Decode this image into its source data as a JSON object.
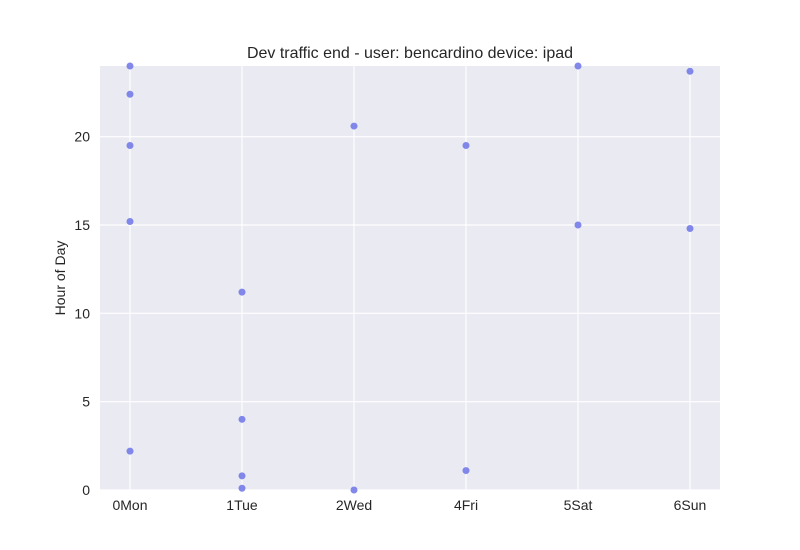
{
  "chart_data": {
    "type": "scatter",
    "title": "Dev traffic end - user: bencardino device: ipad",
    "xlabel": "",
    "ylabel": "Hour of Day",
    "categories": [
      "0Mon",
      "1Tue",
      "2Wed",
      "4Fri",
      "5Sat",
      "6Sun"
    ],
    "ylim": [
      0,
      24
    ],
    "yticks": [
      0,
      5,
      10,
      15,
      20
    ],
    "grid": true,
    "colors": {
      "background": "#EAEAF2",
      "grid": "#FFFFFF",
      "marker": "#6C74E8"
    },
    "points": [
      {
        "x": "0Mon",
        "y": 24.0
      },
      {
        "x": "0Mon",
        "y": 22.4
      },
      {
        "x": "0Mon",
        "y": 19.5
      },
      {
        "x": "0Mon",
        "y": 15.2
      },
      {
        "x": "0Mon",
        "y": 2.2
      },
      {
        "x": "1Tue",
        "y": 11.2
      },
      {
        "x": "1Tue",
        "y": 4.0
      },
      {
        "x": "1Tue",
        "y": 0.8
      },
      {
        "x": "1Tue",
        "y": 0.1
      },
      {
        "x": "2Wed",
        "y": 20.6
      },
      {
        "x": "2Wed",
        "y": 0.0
      },
      {
        "x": "4Fri",
        "y": 19.5
      },
      {
        "x": "4Fri",
        "y": 1.1
      },
      {
        "x": "5Sat",
        "y": 24.0
      },
      {
        "x": "5Sat",
        "y": 15.0
      },
      {
        "x": "6Sun",
        "y": 23.7
      },
      {
        "x": "6Sun",
        "y": 14.8
      }
    ]
  }
}
